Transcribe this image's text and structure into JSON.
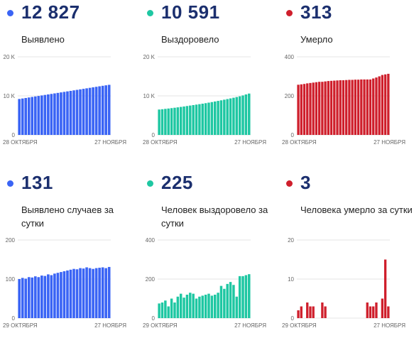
{
  "stats": [
    {
      "value": "12 827",
      "label": "Выявлено",
      "color": "#3a64f5"
    },
    {
      "value": "10 591",
      "label": "Выздоровело",
      "color": "#1ec7a2"
    },
    {
      "value": "313",
      "label": "Умерло",
      "color": "#cf1f2c"
    },
    {
      "value": "131",
      "label": "Выявлено случаев за сутки",
      "color": "#3a64f5"
    },
    {
      "value": "225",
      "label": "Человек выздоровело за сутки",
      "color": "#1ec7a2"
    },
    {
      "value": "3",
      "label": "Человека умерло за сутки",
      "color": "#cf1f2c"
    }
  ],
  "chart_data": [
    {
      "type": "bar",
      "color": "#3a64f5",
      "ylim": [
        0,
        20000
      ],
      "yticks": [
        "0",
        "10 K",
        "20 K"
      ],
      "ytick_values": [
        0,
        10000,
        20000
      ],
      "xlabels": [
        "28 ОКТЯБРЯ",
        "27 НОЯБРЯ"
      ],
      "values": [
        9200,
        9330,
        9460,
        9590,
        9720,
        9850,
        9980,
        10110,
        10240,
        10370,
        10500,
        10630,
        10760,
        10890,
        11020,
        11150,
        11280,
        11410,
        11540,
        11670,
        11800,
        11930,
        12060,
        12190,
        12320,
        12450,
        12580,
        12700,
        12827
      ]
    },
    {
      "type": "bar",
      "color": "#1ec7a2",
      "ylim": [
        0,
        20000
      ],
      "yticks": [
        "0",
        "10 K",
        "20 K"
      ],
      "ytick_values": [
        0,
        10000,
        20000
      ],
      "xlabels": [
        "28 ОКТЯБРЯ",
        "27 НОЯБРЯ"
      ],
      "values": [
        6500,
        6580,
        6670,
        6760,
        6860,
        6960,
        7060,
        7170,
        7280,
        7400,
        7520,
        7640,
        7760,
        7880,
        8000,
        8130,
        8270,
        8410,
        8560,
        8710,
        8860,
        9020,
        9180,
        9350,
        9520,
        9700,
        9890,
        10110,
        10366,
        10591
      ]
    },
    {
      "type": "bar",
      "color": "#cf1f2c",
      "ylim": [
        0,
        400
      ],
      "yticks": [
        "0",
        "200",
        "400"
      ],
      "ytick_values": [
        0,
        200,
        400
      ],
      "xlabels": [
        "28 ОКТЯБРЯ",
        "27 НОЯБРЯ"
      ],
      "values": [
        257,
        259,
        261,
        264,
        266,
        268,
        270,
        272,
        272,
        274,
        276,
        277,
        278,
        279,
        280,
        280,
        281,
        282,
        282,
        283,
        283,
        284,
        284,
        284,
        284,
        289,
        294,
        300,
        307,
        310,
        313
      ]
    },
    {
      "type": "bar",
      "color": "#3a64f5",
      "ylim": [
        0,
        200
      ],
      "yticks": [
        "0",
        "100",
        "200"
      ],
      "ytick_values": [
        0,
        100,
        200
      ],
      "xlabels": [
        "29 ОКТЯБРЯ",
        "27 НОЯБРЯ"
      ],
      "values": [
        100,
        103,
        101,
        105,
        104,
        107,
        105,
        109,
        108,
        112,
        110,
        114,
        116,
        118,
        120,
        122,
        124,
        126,
        125,
        128,
        127,
        130,
        128,
        126,
        128,
        129,
        130,
        128,
        131
      ]
    },
    {
      "type": "bar",
      "color": "#1ec7a2",
      "ylim": [
        0,
        400
      ],
      "yticks": [
        "0",
        "200",
        "400"
      ],
      "ytick_values": [
        0,
        200,
        400
      ],
      "xlabels": [
        "29 ОКТЯБРЯ",
        "27 НОЯБРЯ"
      ],
      "values": [
        75,
        80,
        90,
        60,
        100,
        80,
        110,
        125,
        105,
        120,
        130,
        125,
        100,
        110,
        115,
        120,
        125,
        115,
        120,
        130,
        165,
        150,
        175,
        185,
        170,
        110,
        215,
        215,
        220,
        225
      ]
    },
    {
      "type": "bar",
      "color": "#cf1f2c",
      "ylim": [
        0,
        20
      ],
      "yticks": [
        "0",
        "10",
        "20"
      ],
      "ytick_values": [
        0,
        10,
        20
      ],
      "xlabels": [
        "29 ОКТЯБРЯ",
        "27 НОЯБРЯ"
      ],
      "values": [
        2,
        3,
        0,
        4,
        3,
        3,
        0,
        0,
        4,
        3,
        0,
        0,
        0,
        0,
        0,
        0,
        0,
        0,
        0,
        0,
        0,
        0,
        0,
        4,
        3,
        3,
        4,
        0,
        5,
        15,
        3
      ]
    }
  ]
}
